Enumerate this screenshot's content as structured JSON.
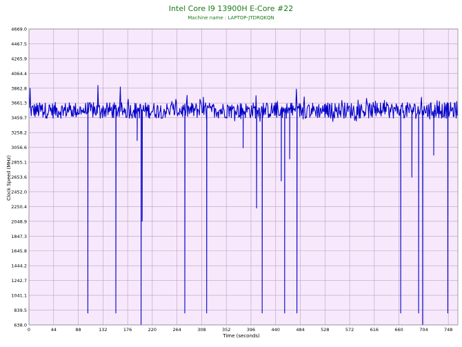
{
  "chart_data": {
    "type": "line",
    "title": "Intel Core I9 13900H E-Core #22",
    "subtitle": "Machine name : LAPTOP-JTDRQKQN",
    "xlabel": "Time (seconds)",
    "ylabel": "Clock Speed (MHz)",
    "xlim": [
      0,
      765
    ],
    "ylim": [
      638.0,
      4669.0
    ],
    "x_ticks": [
      0,
      44,
      88,
      132,
      176,
      220,
      264,
      308,
      352,
      396,
      440,
      484,
      528,
      572,
      616,
      660,
      704,
      748
    ],
    "y_ticks": [
      "638.0",
      "839.5",
      "1041.1",
      "1242.7",
      "1444.2",
      "1645.8",
      "1847.3",
      "2048.9",
      "2250.4",
      "2452.0",
      "2653.6",
      "2855.1",
      "3056.6",
      "3258.2",
      "3459.7",
      "3661.3",
      "3862.8",
      "4064.4",
      "4265.9",
      "4467.5",
      "4669.0"
    ],
    "grid": true,
    "baseline_mhz": 3560,
    "noise_amplitude_mhz": 110,
    "peaks": [
      {
        "x": 2,
        "y": 3862
      },
      {
        "x": 123,
        "y": 3900
      },
      {
        "x": 163,
        "y": 3880
      },
      {
        "x": 477,
        "y": 3850
      },
      {
        "x": 405,
        "y": 3760
      }
    ],
    "dips": [
      {
        "x": 105,
        "y": 800
      },
      {
        "x": 155,
        "y": 800
      },
      {
        "x": 193,
        "y": 3150
      },
      {
        "x": 200,
        "y": 638
      },
      {
        "x": 202,
        "y": 2050
      },
      {
        "x": 278,
        "y": 800
      },
      {
        "x": 317,
        "y": 800
      },
      {
        "x": 382,
        "y": 3050
      },
      {
        "x": 406,
        "y": 2230
      },
      {
        "x": 416,
        "y": 800
      },
      {
        "x": 450,
        "y": 2600
      },
      {
        "x": 456,
        "y": 800
      },
      {
        "x": 478,
        "y": 800
      },
      {
        "x": 465,
        "y": 2900
      },
      {
        "x": 663,
        "y": 800
      },
      {
        "x": 683,
        "y": 2650
      },
      {
        "x": 695,
        "y": 800
      },
      {
        "x": 702,
        "y": 638
      },
      {
        "x": 722,
        "y": 2950
      },
      {
        "x": 747,
        "y": 800
      }
    ],
    "colors": {
      "line": "#0000c8",
      "plot_bg": "#f7e8fb",
      "grid": "#b8a0c4",
      "title": "#1a7a1a"
    }
  }
}
